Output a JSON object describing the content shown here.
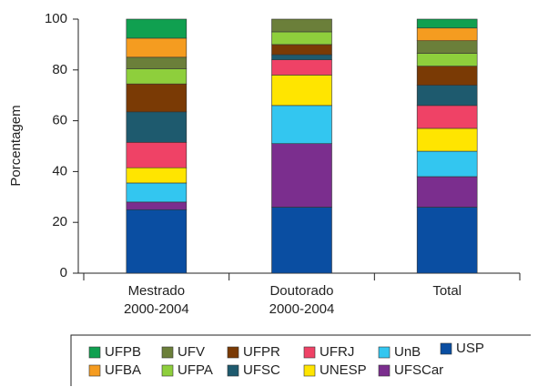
{
  "chart_data": {
    "type": "stacked_bar",
    "y_label": "Porcentagem",
    "categories": [
      [
        "Mestrado",
        "2000-2004"
      ],
      [
        "Doutorado",
        "2000-2004"
      ],
      [
        "Total"
      ]
    ],
    "ylim": [
      0,
      100
    ],
    "yticks": [
      0,
      20,
      40,
      60,
      80,
      100
    ],
    "series": [
      {
        "name": "USP",
        "color": "#0a4ea2",
        "values": [
          25,
          26,
          26
        ]
      },
      {
        "name": "UFSCar",
        "color": "#7b2e8e",
        "values": [
          3,
          25,
          12
        ]
      },
      {
        "name": "UnB",
        "color": "#33c6f0",
        "values": [
          7.5,
          15,
          10
        ]
      },
      {
        "name": "UNESP",
        "color": "#ffe500",
        "values": [
          6,
          12,
          9
        ]
      },
      {
        "name": "UFRJ",
        "color": "#ef4266",
        "values": [
          10,
          6,
          9
        ]
      },
      {
        "name": "UFSC",
        "color": "#1e5a6e",
        "values": [
          12,
          2,
          8
        ]
      },
      {
        "name": "UFPR",
        "color": "#7a3a05",
        "values": [
          11,
          4,
          7.5
        ]
      },
      {
        "name": "UFPA",
        "color": "#8ecf3c",
        "values": [
          6,
          5,
          5
        ]
      },
      {
        "name": "UFV",
        "color": "#6b7f3a",
        "values": [
          4.5,
          5,
          5
        ]
      },
      {
        "name": "UFBA",
        "color": "#f59c20",
        "values": [
          7.5,
          0,
          5
        ]
      },
      {
        "name": "UFPB",
        "color": "#10a050",
        "values": [
          7.5,
          0,
          3.5
        ]
      }
    ]
  }
}
